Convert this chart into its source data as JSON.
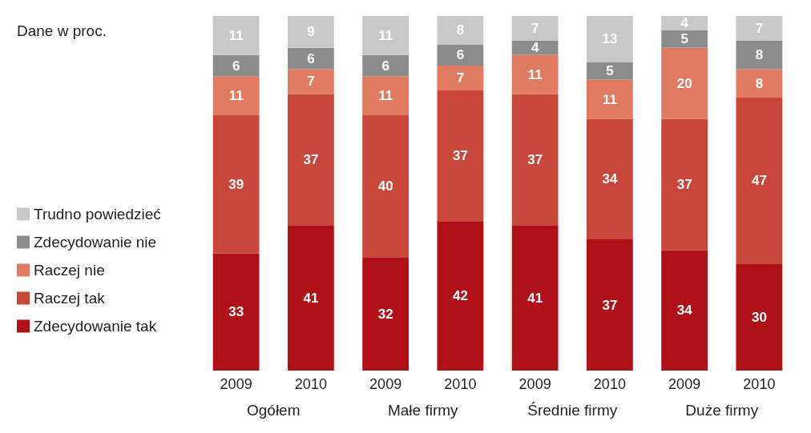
{
  "chart_data": {
    "type": "bar",
    "subtitle": "Dane w proc.",
    "categories": [
      "2009",
      "2010",
      "2009",
      "2010",
      "2009",
      "2010",
      "2009",
      "2010"
    ],
    "annotations": [
      "Ogółem",
      "Małe firmy",
      "Średnie firmy",
      "Duże firmy"
    ],
    "stacked": true,
    "data_labels": true,
    "legend": "left",
    "grid": false,
    "series": [
      {
        "name": "Zdecydowanie tak",
        "color": "#b01018",
        "values": [
          33,
          41,
          32,
          42,
          41,
          37,
          34,
          30
        ]
      },
      {
        "name": "Raczej tak",
        "color": "#c8473a",
        "values": [
          39,
          37,
          40,
          37,
          37,
          34,
          37,
          47
        ]
      },
      {
        "name": "Raczej nie",
        "color": "#e07a60",
        "values": [
          11,
          7,
          11,
          7,
          11,
          11,
          20,
          8
        ]
      },
      {
        "name": "Zdecydowanie nie",
        "color": "#8c8c8c",
        "values": [
          6,
          6,
          6,
          6,
          4,
          5,
          5,
          8
        ]
      },
      {
        "name": "Trudno powiedzieć",
        "color": "#c8c8c8",
        "values": [
          11,
          9,
          11,
          8,
          7,
          13,
          4,
          7
        ]
      }
    ]
  }
}
